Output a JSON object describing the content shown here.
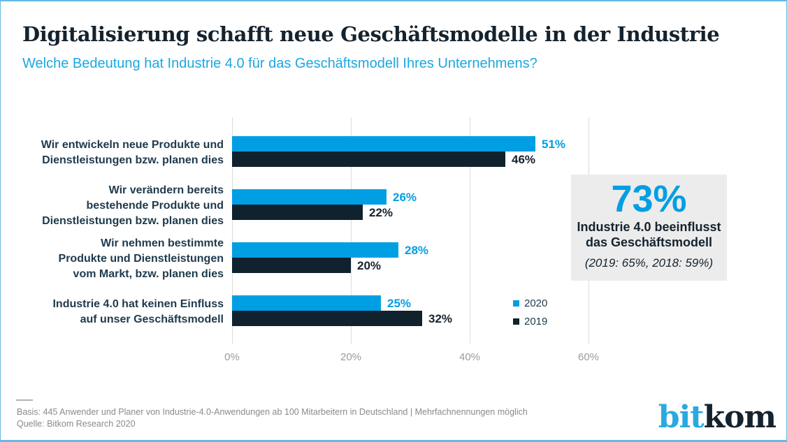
{
  "page": {
    "title": "Digitalisierung schafft neue Geschäftsmodelle in der Industrie",
    "subtitle": "Welche Bedeutung hat Industrie 4.0 für das Geschäftsmodell Ihres Unternehmens?"
  },
  "chart_data": {
    "type": "bar",
    "orientation": "horizontal",
    "title": "Digitalisierung schafft neue Geschäftsmodelle in der Industrie",
    "xlabel": "",
    "ylabel": "",
    "x_axis": {
      "range": [
        0,
        60
      ],
      "unit": "%",
      "ticks": [
        "0%",
        "20%",
        "40%",
        "60%"
      ],
      "tick_values": [
        0,
        20,
        40,
        60
      ],
      "grid": true
    },
    "categories": [
      [
        "Wir entwickeln neue Produkte und",
        "Dienstleistungen bzw. planen dies"
      ],
      [
        "Wir verändern bereits",
        "bestehende Produkte und",
        "Dienstleistungen bzw. planen dies"
      ],
      [
        "Wir nehmen bestimmte",
        "Produkte und Dienstleistungen",
        "vom Markt, bzw. planen dies"
      ],
      [
        "Industrie 4.0 hat keinen Einfluss",
        "auf unser Geschäftsmodell"
      ]
    ],
    "series": [
      {
        "name": "2020",
        "color": "#009fe3",
        "values": [
          51,
          26,
          28,
          25
        ]
      },
      {
        "name": "2019",
        "color": "#0f222e",
        "values": [
          46,
          22,
          20,
          32
        ]
      }
    ],
    "legend_position": "right-bottom"
  },
  "highlight_box": {
    "value": "73%",
    "line1": "Industrie 4.0 beeinflusst",
    "line2": "das Geschäftsmodell",
    "note": "(2019: 65%, 2018: 59%)"
  },
  "footer": {
    "basis": "Basis: 445 Anwender und Planer von Industrie-4.0-Anwendungen ab 100 Mitarbeitern in Deutschland | Mehrfachnennungen möglich",
    "quelle": "Quelle: Bitkom Research 2020"
  },
  "logo": {
    "part1": "bit",
    "part2": "kom"
  },
  "colors": {
    "accent_blue": "#009fe3",
    "dark_navy": "#0f222e",
    "box_gray": "#ececec",
    "frame_blue": "#67b9e3"
  }
}
